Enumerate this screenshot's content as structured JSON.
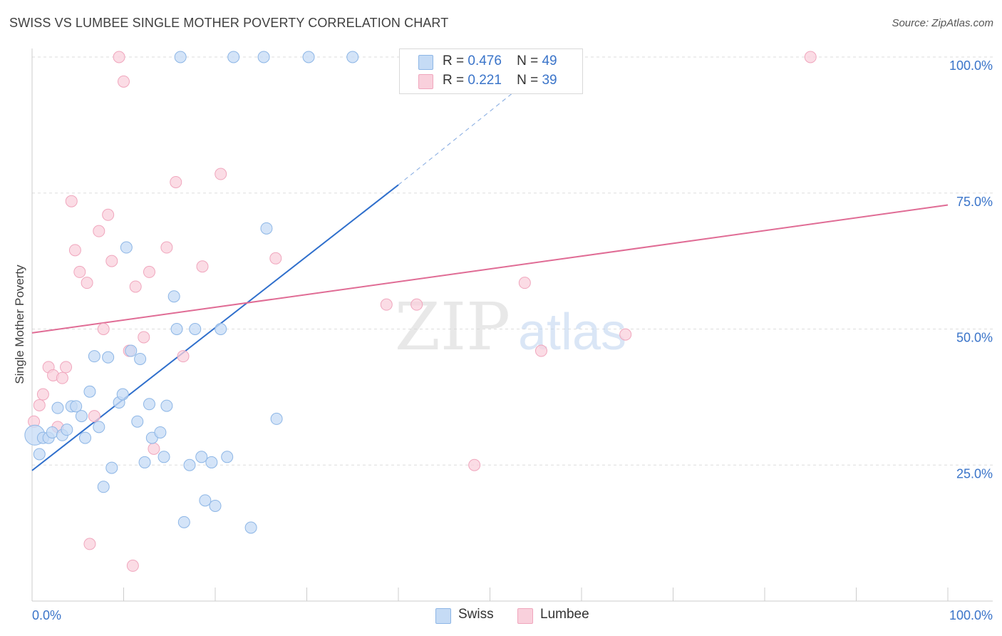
{
  "title": "SWISS VS LUMBEE SINGLE MOTHER POVERTY CORRELATION CHART",
  "source": "Source: ZipAtlas.com",
  "watermark": {
    "zip": "ZIP",
    "atlas": "atlas"
  },
  "colors": {
    "swiss_fill": "#c5dbf5",
    "swiss_stroke": "#8db6e6",
    "swiss_line": "#2f6fcc",
    "lumbee_fill": "#f9d0dc",
    "lumbee_stroke": "#f0a6bd",
    "lumbee_line": "#e06c95",
    "axis_text": "#3a74c9",
    "grid": "#dddddd"
  },
  "legend": {
    "rows": [
      {
        "r_label": "R =",
        "r_value": "0.476",
        "n_label": "N =",
        "n_value": "49"
      },
      {
        "r_label": "R =",
        "r_value": "0.221",
        "n_label": "N =",
        "n_value": "39"
      }
    ],
    "bottom": [
      "Swiss",
      "Lumbee"
    ]
  },
  "chart_data": {
    "type": "scatter",
    "title": "SWISS VS LUMBEE SINGLE MOTHER POVERTY CORRELATION CHART",
    "xlabel": "",
    "ylabel": "Single Mother Poverty",
    "xlim": [
      0,
      100
    ],
    "ylim": [
      0,
      104
    ],
    "x_tick_labels": {
      "left": "0.0%",
      "right": "100.0%"
    },
    "y_ticks": [
      25,
      50,
      75,
      100
    ],
    "y_tick_labels": [
      "25.0%",
      "50.0%",
      "75.0%",
      "100.0%"
    ],
    "series": [
      {
        "name": "Swiss",
        "r": 0.476,
        "n": 49,
        "trend": {
          "x0": 0,
          "y0": 24.0,
          "x1": 40,
          "y1": 76.5,
          "dash_x1": 57,
          "dash_y1": 99.5
        },
        "points": [
          [
            0.3,
            30.5
          ],
          [
            0.8,
            27.0
          ],
          [
            1.2,
            30.0
          ],
          [
            1.8,
            30.0
          ],
          [
            2.2,
            31.0
          ],
          [
            2.8,
            35.5
          ],
          [
            3.3,
            30.5
          ],
          [
            3.8,
            31.5
          ],
          [
            4.3,
            35.8
          ],
          [
            4.8,
            35.8
          ],
          [
            5.4,
            34.0
          ],
          [
            5.8,
            30.0
          ],
          [
            6.3,
            38.5
          ],
          [
            6.8,
            45.0
          ],
          [
            7.3,
            32.0
          ],
          [
            7.8,
            21.0
          ],
          [
            8.3,
            44.8
          ],
          [
            8.7,
            24.5
          ],
          [
            9.5,
            36.5
          ],
          [
            9.9,
            38.0
          ],
          [
            10.3,
            65.0
          ],
          [
            10.8,
            46.0
          ],
          [
            11.5,
            33.0
          ],
          [
            11.8,
            44.5
          ],
          [
            12.3,
            25.5
          ],
          [
            12.8,
            36.2
          ],
          [
            13.1,
            30.0
          ],
          [
            14.0,
            31.0
          ],
          [
            14.4,
            26.5
          ],
          [
            14.7,
            35.9
          ],
          [
            15.5,
            56.0
          ],
          [
            15.8,
            50.0
          ],
          [
            16.2,
            100.0
          ],
          [
            16.6,
            14.5
          ],
          [
            17.2,
            25.0
          ],
          [
            17.8,
            50.0
          ],
          [
            18.5,
            26.5
          ],
          [
            18.9,
            18.5
          ],
          [
            19.6,
            25.5
          ],
          [
            20.0,
            17.5
          ],
          [
            20.6,
            50.0
          ],
          [
            21.3,
            26.5
          ],
          [
            22.0,
            100.0
          ],
          [
            23.9,
            13.5
          ],
          [
            25.3,
            100.0
          ],
          [
            25.6,
            68.5
          ],
          [
            26.7,
            33.5
          ],
          [
            30.2,
            100.0
          ],
          [
            35.0,
            100.0
          ]
        ]
      },
      {
        "name": "Lumbee",
        "r": 0.221,
        "n": 39,
        "trend": {
          "x0": 0,
          "y0": 49.3,
          "x1": 100,
          "y1": 72.8
        },
        "points": [
          [
            0.2,
            33.0
          ],
          [
            0.8,
            36.0
          ],
          [
            1.2,
            38.0
          ],
          [
            1.8,
            43.0
          ],
          [
            2.3,
            41.5
          ],
          [
            2.8,
            32.0
          ],
          [
            3.3,
            41.0
          ],
          [
            3.7,
            43.0
          ],
          [
            4.3,
            73.5
          ],
          [
            4.7,
            64.5
          ],
          [
            5.2,
            60.5
          ],
          [
            6.0,
            58.5
          ],
          [
            6.3,
            10.5
          ],
          [
            6.8,
            34.0
          ],
          [
            7.3,
            68.0
          ],
          [
            7.8,
            50.0
          ],
          [
            8.3,
            71.0
          ],
          [
            8.7,
            62.5
          ],
          [
            9.5,
            100.0
          ],
          [
            10.0,
            95.5
          ],
          [
            10.6,
            46.0
          ],
          [
            11.0,
            6.5
          ],
          [
            11.3,
            57.8
          ],
          [
            12.2,
            48.5
          ],
          [
            12.8,
            60.5
          ],
          [
            13.3,
            28.0
          ],
          [
            14.7,
            65.0
          ],
          [
            15.7,
            77.0
          ],
          [
            16.5,
            45.0
          ],
          [
            18.6,
            61.5
          ],
          [
            20.6,
            78.5
          ],
          [
            26.6,
            63.0
          ],
          [
            38.7,
            54.5
          ],
          [
            42.0,
            54.5
          ],
          [
            48.3,
            25.0
          ],
          [
            53.8,
            58.5
          ],
          [
            55.6,
            46.0
          ],
          [
            64.8,
            49.0
          ],
          [
            85.0,
            100.0
          ]
        ]
      }
    ]
  }
}
